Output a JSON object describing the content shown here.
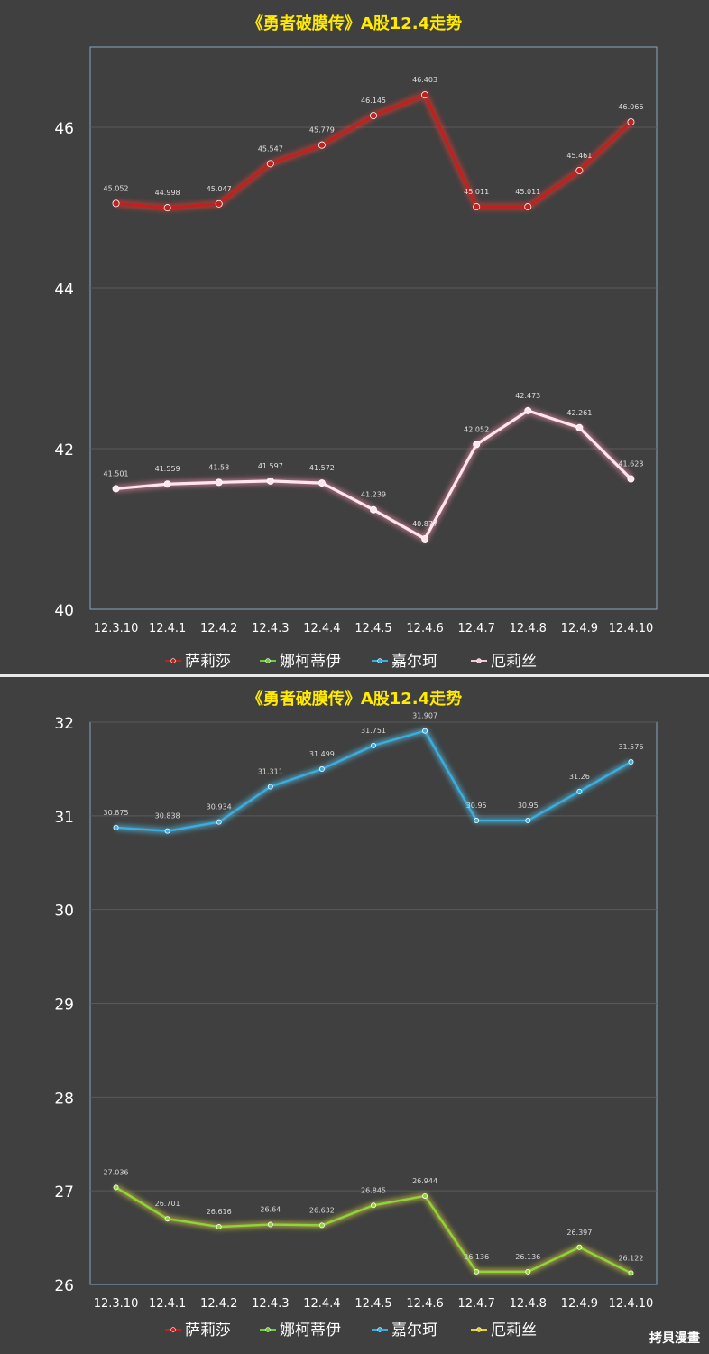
{
  "chart_data": [
    {
      "type": "line",
      "title": "《勇者破膜传》A股12.4走势",
      "categories": [
        "12.3.10",
        "12.4.1",
        "12.4.2",
        "12.4.3",
        "12.4.4",
        "12.4.5",
        "12.4.6",
        "12.4.7",
        "12.4.8",
        "12.4.9",
        "12.4.10"
      ],
      "ylim": [
        40,
        47
      ],
      "yticks": [
        "40",
        "42",
        "44",
        "46"
      ],
      "grid": true,
      "legend_position": "bottom",
      "legend": [
        {
          "name": "萨莉莎",
          "color": "#c0201e"
        },
        {
          "name": "娜柯蒂伊",
          "color": "#6fcf3a"
        },
        {
          "name": "嘉尔珂",
          "color": "#3aaee0"
        },
        {
          "name": "厄莉丝",
          "color": "#f4c7d6"
        }
      ],
      "series": [
        {
          "name": "萨莉莎",
          "color": "#c0201e",
          "glow": "#ff3b2f",
          "values": [
            45.052,
            44.998,
            45.047,
            45.547,
            45.779,
            46.145,
            46.403,
            45.011,
            45.011,
            45.461,
            46.066
          ],
          "labels": [
            "45.052",
            "44.998",
            "45.047",
            "45.547",
            "45.779",
            "46.145",
            "46.403",
            "45.011",
            "45.011",
            "45.461",
            "46.066"
          ]
        },
        {
          "name": "厄莉丝",
          "color": "#ffe6ee",
          "glow": "#ff8fb0",
          "values": [
            41.501,
            41.559,
            41.58,
            41.597,
            41.572,
            41.239,
            40.877,
            42.052,
            42.473,
            42.261,
            41.623
          ],
          "labels": [
            "41.501",
            "41.559",
            "41.58",
            "41.597",
            "41.572",
            "41.239",
            "40.877",
            "42.052",
            "42.473",
            "42.261",
            "41.623"
          ]
        }
      ]
    },
    {
      "type": "line",
      "title": "《勇者破膜传》A股12.4走势",
      "categories": [
        "12.3.10",
        "12.4.1",
        "12.4.2",
        "12.4.3",
        "12.4.4",
        "12.4.5",
        "12.4.6",
        "12.4.7",
        "12.4.8",
        "12.4.9",
        "12.4.10"
      ],
      "ylim": [
        26,
        32
      ],
      "yticks": [
        "26",
        "27",
        "28",
        "29",
        "30",
        "31",
        "32"
      ],
      "grid": true,
      "legend_position": "bottom",
      "legend": [
        {
          "name": "萨莉莎",
          "color": "#c0201e"
        },
        {
          "name": "娜柯蒂伊",
          "color": "#6fcf3a"
        },
        {
          "name": "嘉尔珂",
          "color": "#3aaee0"
        },
        {
          "name": "厄莉丝",
          "color": "#e8d22a"
        }
      ],
      "series": [
        {
          "name": "嘉尔珂",
          "color": "#3aaee0",
          "glow": "#4fd0ff",
          "values": [
            30.875,
            30.838,
            30.934,
            31.311,
            31.499,
            31.751,
            31.907,
            30.95,
            30.95,
            31.26,
            31.576
          ],
          "labels": [
            "30.875",
            "30.838",
            "30.934",
            "31.311",
            "31.499",
            "31.751",
            "31.907",
            "30.95",
            "30.95",
            "31.26",
            "31.576"
          ]
        },
        {
          "name": "娜柯蒂伊",
          "color": "#8fd43a",
          "glow": "#e8e03a",
          "values": [
            27.036,
            26.701,
            26.616,
            26.64,
            26.632,
            26.845,
            26.944,
            26.136,
            26.136,
            26.397,
            26.122
          ],
          "labels": [
            "27.036",
            "26.701",
            "26.616",
            "26.64",
            "26.632",
            "26.845",
            "26.944",
            "26.136",
            "26.136",
            "26.397",
            "26.122"
          ]
        }
      ]
    }
  ],
  "watermark": "拷貝漫畫"
}
